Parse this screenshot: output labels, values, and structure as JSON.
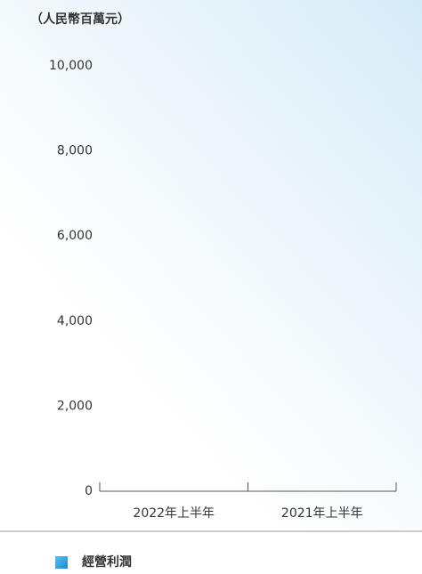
{
  "chart_data": {
    "type": "bar",
    "y_axis_label": "（人民幣百萬元）",
    "categories": [
      "2022年上半年",
      "2021年上半年"
    ],
    "series": [
      {
        "name": "經營利潤",
        "color": "#1e9be0",
        "values": [
          null,
          null
        ]
      }
    ],
    "ylim": [
      0,
      10000
    ],
    "yticks": [
      0,
      {
        "value": 2000,
        "label": "2,000"
      },
      {
        "value": 4000,
        "label": "4,000"
      },
      {
        "value": 6000,
        "label": "6,000"
      },
      {
        "value": 8000,
        "label": "8,000"
      },
      {
        "value": 10000,
        "label": "10,000"
      }
    ],
    "grid": false
  }
}
